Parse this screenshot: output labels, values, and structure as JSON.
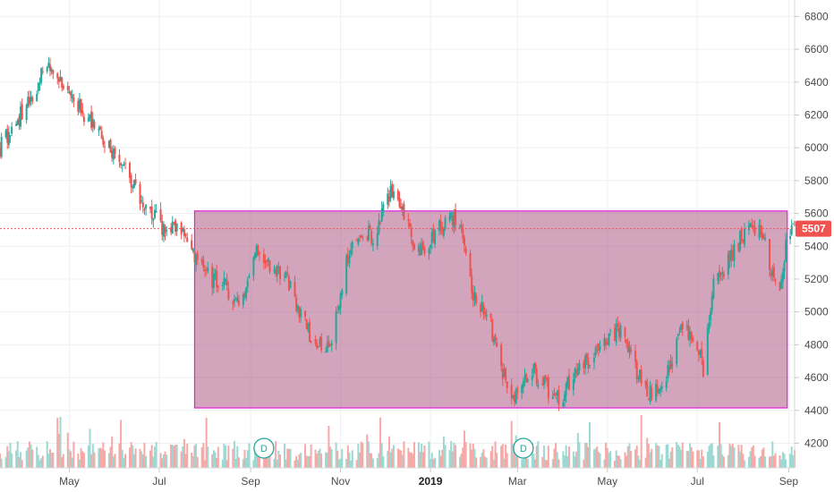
{
  "chart_data": {
    "type": "candlestick",
    "x_axis": {
      "labels": [
        "May",
        "Jul",
        "Sep",
        "Nov",
        "2019",
        "Mar",
        "May",
        "Jul",
        "Sep"
      ],
      "label_dates": [
        "2018-05-01",
        "2018-07-01",
        "2018-09-01",
        "2018-11-01",
        "2019-01-01",
        "2019-03-01",
        "2019-05-01",
        "2019-07-01",
        "2019-09-01"
      ],
      "bold_label": "2019",
      "range": [
        "2018-03-15",
        "2019-09-05"
      ]
    },
    "y_axis": {
      "position": "right",
      "ticks": [
        4200,
        4400,
        4600,
        4800,
        5000,
        5200,
        5400,
        5600,
        5800,
        6000,
        6200,
        6400,
        6600,
        6800
      ],
      "range": [
        4050,
        6900
      ]
    },
    "grid": true,
    "last_price": {
      "value": 5507,
      "label": "5507",
      "color": "#ef5350"
    },
    "rectangle": {
      "start": "2018-07-25",
      "end": "2019-08-31",
      "price_high": 5615,
      "price_low": 4415,
      "fill": "#a8527f",
      "stroke": "#e020e0"
    },
    "dividend_markers": [
      {
        "date": "2018-09-10",
        "label": "D"
      },
      {
        "date": "2019-03-05",
        "label": "D"
      }
    ],
    "colors": {
      "up": "#26a69a",
      "down": "#ef5350",
      "volume_up": "#9dd9d2",
      "volume_down": "#f6a9a7"
    },
    "price_path": [
      [
        "2018-03-15",
        6000
      ],
      [
        "2018-03-25",
        6150
      ],
      [
        "2018-04-05",
        6280
      ],
      [
        "2018-04-15",
        6520
      ],
      [
        "2018-04-25",
        6420
      ],
      [
        "2018-05-05",
        6300
      ],
      [
        "2018-05-15",
        6150
      ],
      [
        "2018-05-25",
        6050
      ],
      [
        "2018-06-05",
        5900
      ],
      [
        "2018-06-15",
        5750
      ],
      [
        "2018-06-25",
        5620
      ],
      [
        "2018-07-05",
        5480
      ],
      [
        "2018-07-15",
        5520
      ],
      [
        "2018-07-25",
        5350
      ],
      [
        "2018-08-05",
        5200
      ],
      [
        "2018-08-15",
        5150
      ],
      [
        "2018-08-25",
        5050
      ],
      [
        "2018-09-05",
        5380
      ],
      [
        "2018-09-15",
        5250
      ],
      [
        "2018-09-25",
        5200
      ],
      [
        "2018-10-05",
        5000
      ],
      [
        "2018-10-15",
        4780
      ],
      [
        "2018-10-25",
        4820
      ],
      [
        "2018-11-05",
        5300
      ],
      [
        "2018-11-15",
        5500
      ],
      [
        "2018-11-25",
        5460
      ],
      [
        "2018-12-05",
        5750
      ],
      [
        "2018-12-15",
        5550
      ],
      [
        "2018-12-25",
        5350
      ],
      [
        "2019-01-05",
        5480
      ],
      [
        "2019-01-15",
        5600
      ],
      [
        "2019-01-22",
        5480
      ],
      [
        "2019-01-30",
        5100
      ],
      [
        "2019-02-10",
        4950
      ],
      [
        "2019-02-20",
        4600
      ],
      [
        "2019-03-01",
        4470
      ],
      [
        "2019-03-10",
        4650
      ],
      [
        "2019-03-20",
        4550
      ],
      [
        "2019-03-30",
        4450
      ],
      [
        "2019-04-10",
        4680
      ],
      [
        "2019-04-20",
        4700
      ],
      [
        "2019-05-01",
        4850
      ],
      [
        "2019-05-10",
        4900
      ],
      [
        "2019-05-20",
        4650
      ],
      [
        "2019-05-30",
        4500
      ],
      [
        "2019-06-10",
        4600
      ],
      [
        "2019-06-20",
        4880
      ],
      [
        "2019-06-30",
        4850
      ],
      [
        "2019-07-05",
        4650
      ],
      [
        "2019-07-12",
        5150
      ],
      [
        "2019-07-25",
        5350
      ],
      [
        "2019-08-05",
        5550
      ],
      [
        "2019-08-15",
        5450
      ],
      [
        "2019-08-25",
        5100
      ],
      [
        "2019-09-01",
        5507
      ]
    ]
  }
}
